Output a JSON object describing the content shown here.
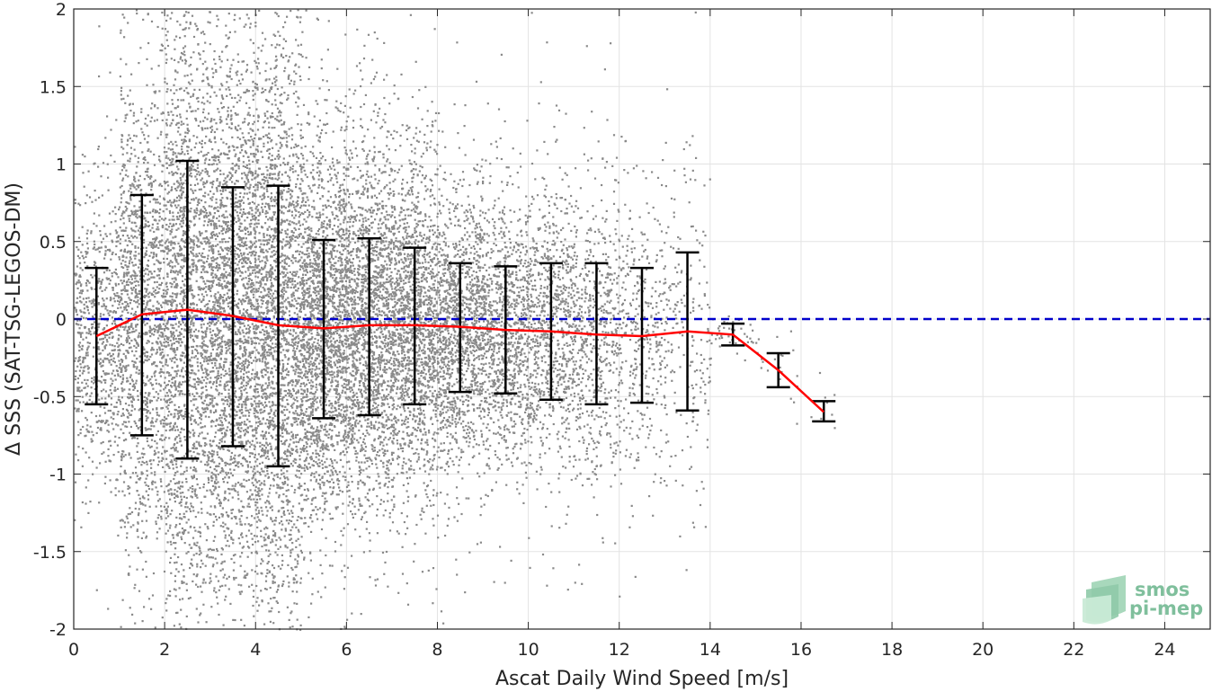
{
  "chart_data": {
    "type": "scatter",
    "xlabel": "Ascat Daily Wind Speed [m/s]",
    "ylabel": "Δ SSS (SAT-TSG-LEGOS-DM)",
    "xlim": [
      0,
      25
    ],
    "ylim": [
      -2,
      2
    ],
    "x_ticks": [
      0,
      2,
      4,
      6,
      8,
      10,
      12,
      14,
      16,
      18,
      20,
      22,
      24
    ],
    "y_ticks": [
      -2,
      -1.5,
      -1,
      -0.5,
      0,
      0.5,
      1,
      1.5,
      2
    ],
    "y_tick_labels": [
      "-2",
      "-1.5",
      "-1",
      "-0.5",
      "0",
      "0.5",
      "1",
      "1.5",
      "2"
    ],
    "grid": true,
    "series": [
      {
        "kind": "scatter",
        "color": "#808080",
        "description_bins": [
          0.5,
          1.5,
          2.5,
          3.5,
          4.5,
          5.5,
          6.5,
          7.5,
          8.5,
          9.5,
          10.5,
          11.5,
          12.5,
          13.5,
          14.5,
          15.5,
          16.5
        ]
      },
      {
        "kind": "mean_line",
        "color": "#ff0000",
        "x": [
          0.5,
          1.5,
          2.5,
          3.5,
          4.5,
          5.5,
          6.5,
          7.5,
          8.5,
          9.5,
          10.5,
          11.5,
          12.5,
          13.5,
          14.5,
          15.5,
          16.5
        ],
        "y": [
          -0.11,
          0.03,
          0.06,
          0.02,
          -0.04,
          -0.06,
          -0.04,
          -0.04,
          -0.05,
          -0.07,
          -0.08,
          -0.1,
          -0.11,
          -0.08,
          -0.1,
          -0.33,
          -0.6
        ]
      },
      {
        "kind": "error_bars",
        "color": "#000000",
        "x": [
          0.5,
          1.5,
          2.5,
          3.5,
          4.5,
          5.5,
          6.5,
          7.5,
          8.5,
          9.5,
          10.5,
          11.5,
          12.5,
          13.5,
          14.5,
          15.5,
          16.5
        ],
        "upper": [
          0.33,
          0.8,
          1.02,
          0.85,
          0.86,
          0.51,
          0.52,
          0.46,
          0.36,
          0.34,
          0.36,
          0.36,
          0.33,
          0.43,
          -0.03,
          -0.22,
          -0.53
        ],
        "lower": [
          -0.55,
          -0.75,
          -0.9,
          -0.82,
          -0.95,
          -0.64,
          -0.62,
          -0.55,
          -0.47,
          -0.48,
          -0.52,
          -0.55,
          -0.54,
          -0.59,
          -0.17,
          -0.44,
          -0.66
        ]
      },
      {
        "kind": "reference_line",
        "color": "#0000cc",
        "style": "dashed",
        "y": 0
      }
    ],
    "logo": {
      "line1": "smos",
      "line2": "pi-mep",
      "color": "#7fbf9c"
    }
  }
}
